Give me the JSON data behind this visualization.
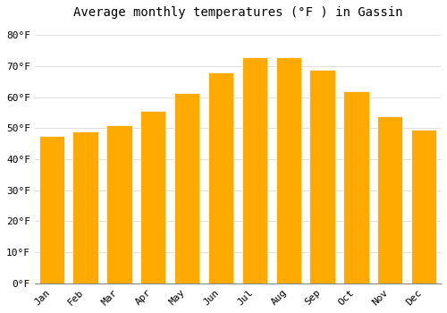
{
  "title": "Average monthly temperatures (°F ) in Gassin",
  "months": [
    "Jan",
    "Feb",
    "Mar",
    "Apr",
    "May",
    "Jun",
    "Jul",
    "Aug",
    "Sep",
    "Oct",
    "Nov",
    "Dec"
  ],
  "values": [
    47.5,
    49.0,
    51.0,
    55.5,
    61.5,
    68.0,
    73.0,
    73.0,
    69.0,
    62.0,
    54.0,
    49.5
  ],
  "bar_color": "#FFAA00",
  "bar_edge_color": "#FFFFFF",
  "background_color": "#FFFFFF",
  "grid_color": "#E0E0E0",
  "ylim": [
    0,
    83
  ],
  "yticks": [
    0,
    10,
    20,
    30,
    40,
    50,
    60,
    70,
    80
  ],
  "title_fontsize": 10,
  "tick_fontsize": 8,
  "bar_width": 0.75
}
